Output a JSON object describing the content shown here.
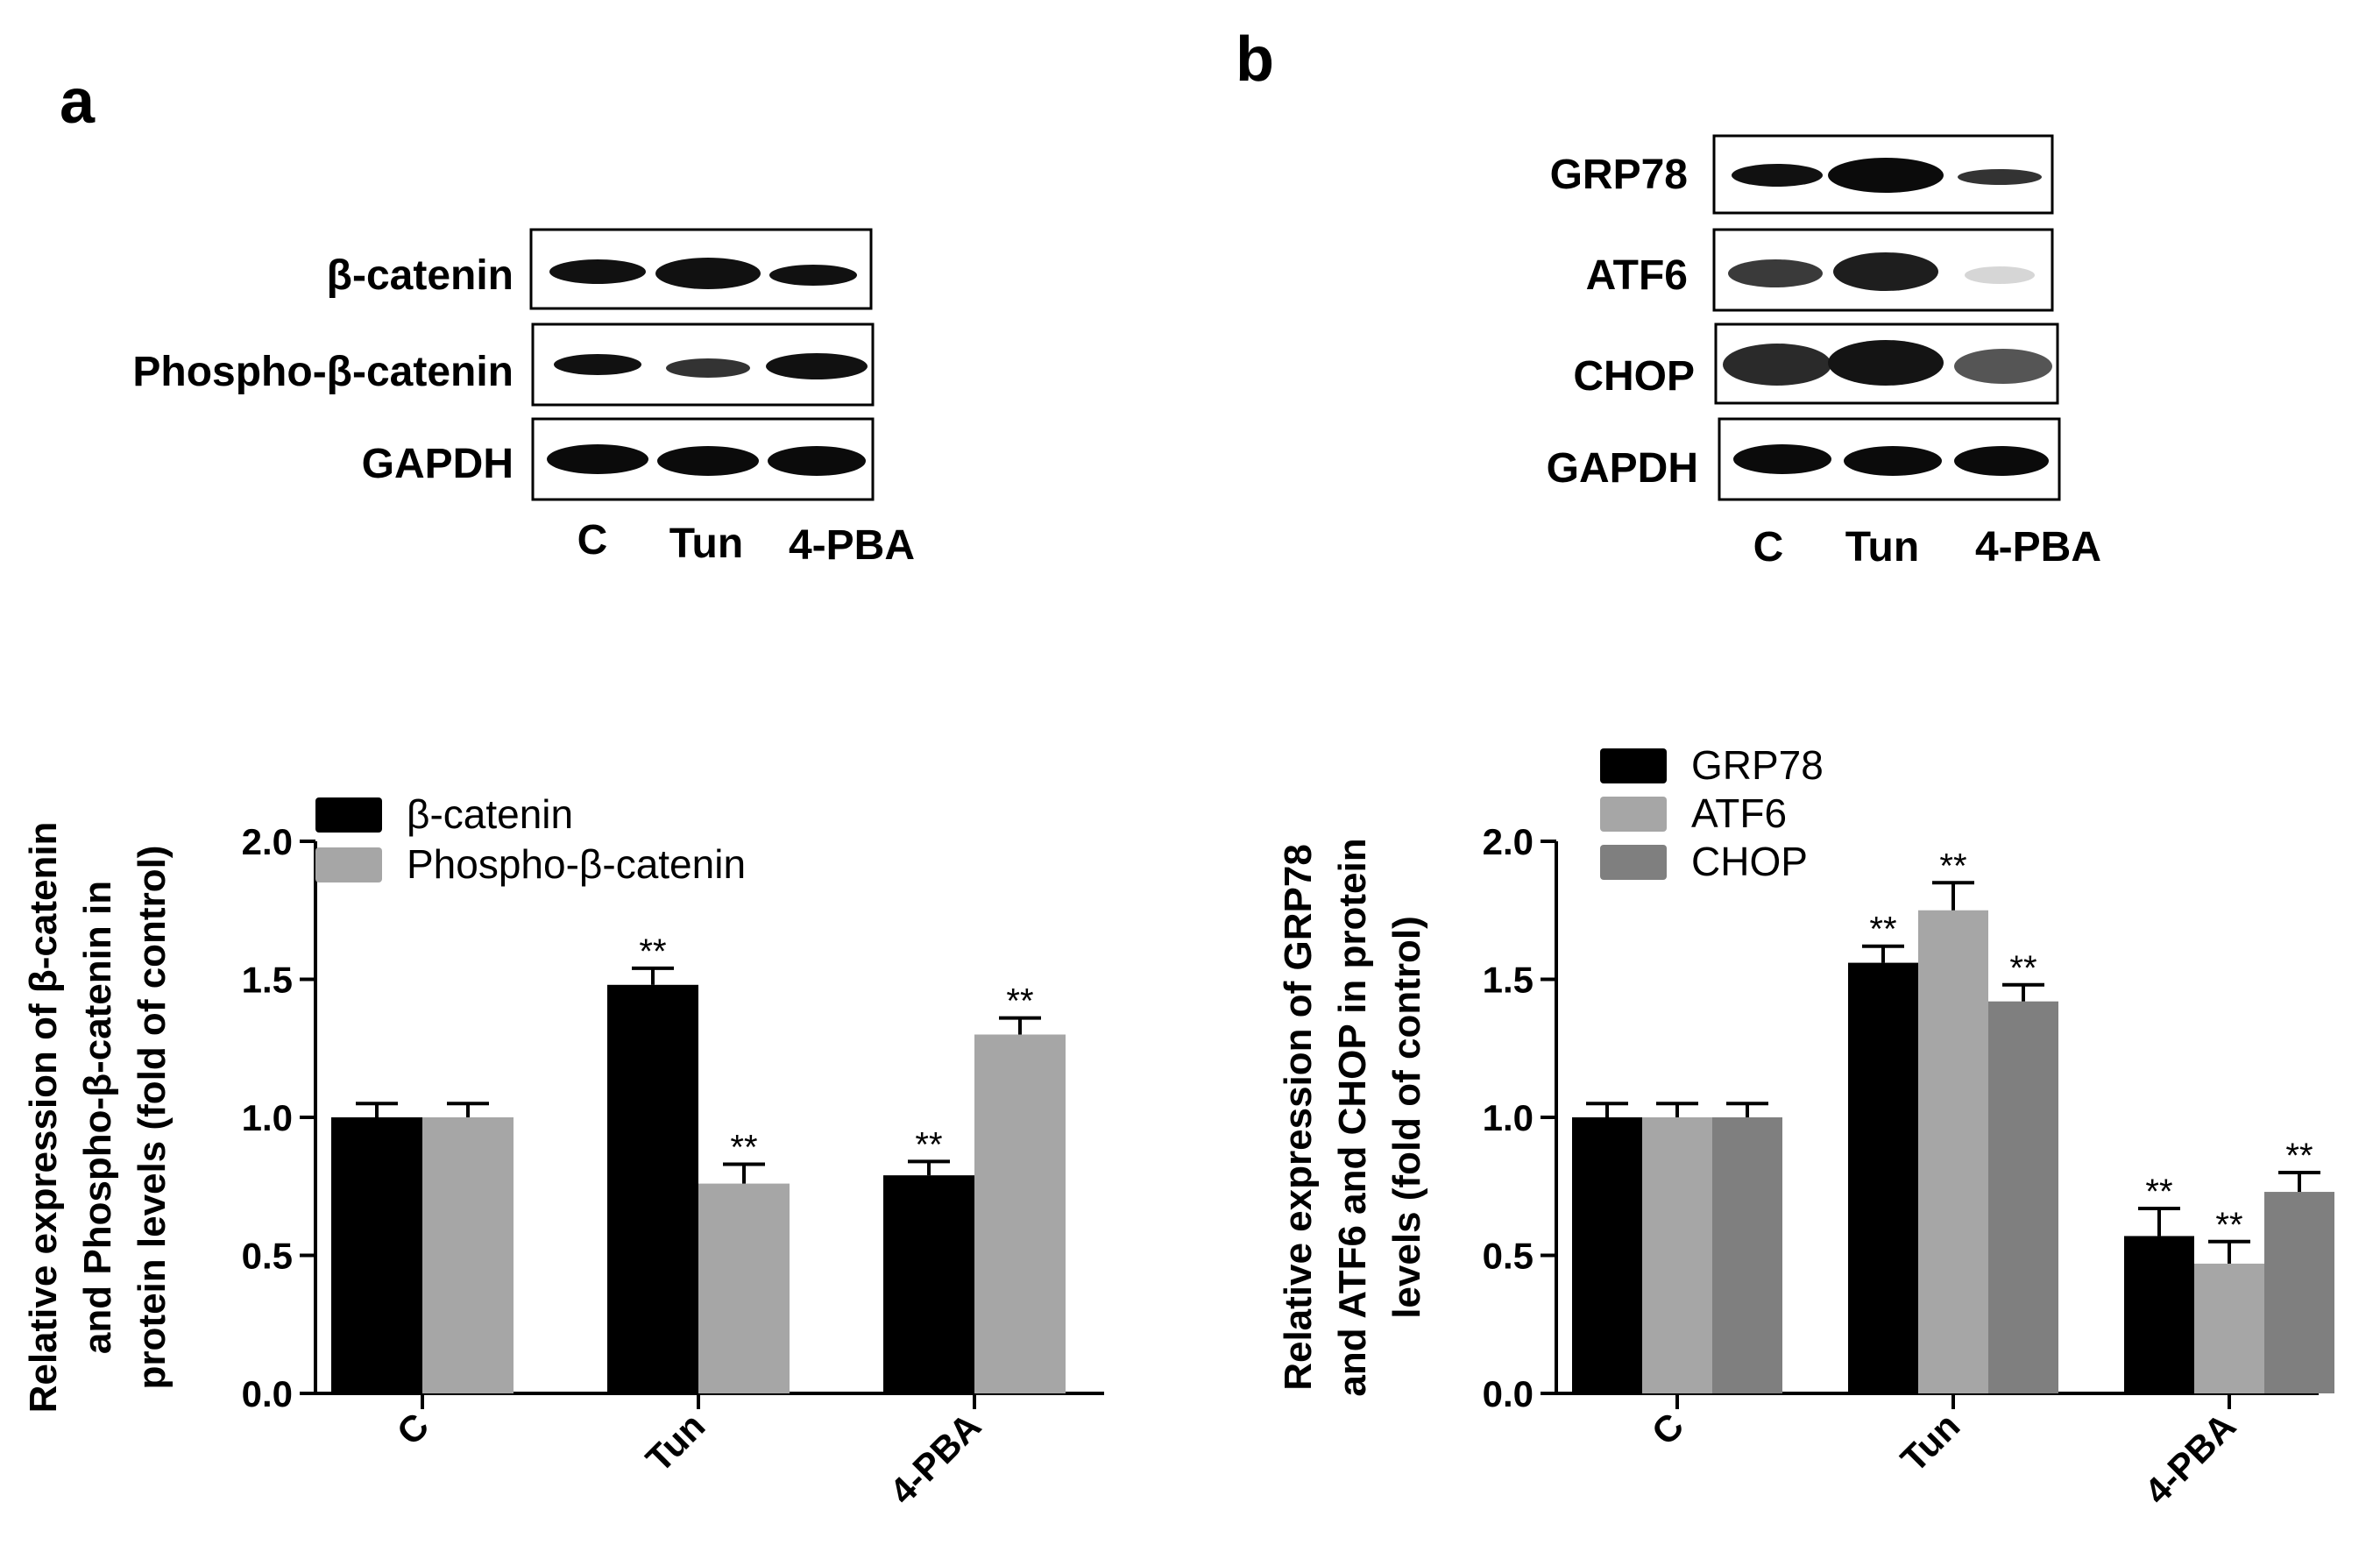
{
  "colors": {
    "black": "#000000",
    "light_gray": "#a6a6a6",
    "dark_gray": "#7f7f7f",
    "band": "#111111"
  },
  "panel_a": {
    "letter": "a",
    "blot": {
      "rows": [
        "β-catenin",
        "Phospho-β-catenin",
        "GAPDH"
      ],
      "lanes": [
        "C",
        "Tun",
        "4-PBA"
      ]
    }
  },
  "panel_b": {
    "letter": "b",
    "blot": {
      "rows": [
        "GRP78",
        "ATF6",
        "CHOP",
        "GAPDH"
      ],
      "lanes": [
        "C",
        "Tun",
        "4-PBA"
      ]
    }
  },
  "chart_data": [
    {
      "type": "bar",
      "title": "",
      "xlabel": "",
      "ylabel": "Relative expression of β-catenin|and Phospho-β-catenin in|protein levels (fold of control)",
      "categories": [
        "C",
        "Tun",
        "4-PBA"
      ],
      "ylim": [
        0,
        2.0
      ],
      "yticks": [
        "0.0",
        "0.5",
        "1.0",
        "1.5",
        "2.0"
      ],
      "legend_position": "top-left",
      "series": [
        {
          "name": "β-catenin",
          "color": "#000000",
          "values": [
            1.0,
            1.48,
            0.79
          ],
          "errors": [
            0.05,
            0.06,
            0.05
          ],
          "labels": [
            "",
            "**",
            "**"
          ]
        },
        {
          "name": "Phospho-β-catenin",
          "color": "#a6a6a6",
          "values": [
            1.0,
            0.76,
            1.3
          ],
          "errors": [
            0.05,
            0.07,
            0.06
          ],
          "labels": [
            "",
            "**",
            "**"
          ]
        }
      ]
    },
    {
      "type": "bar",
      "title": "",
      "xlabel": "",
      "ylabel": "Relative expression of GRP78|and ATF6 and CHOP in protein|levels (fold of control)",
      "categories": [
        "C",
        "Tun",
        "4-PBA"
      ],
      "ylim": [
        0,
        2.0
      ],
      "yticks": [
        "0.0",
        "0.5",
        "1.0",
        "1.5",
        "2.0"
      ],
      "legend_position": "top-left",
      "series": [
        {
          "name": "GRP78",
          "color": "#000000",
          "values": [
            1.0,
            1.56,
            0.57
          ],
          "errors": [
            0.05,
            0.06,
            0.1
          ],
          "labels": [
            "",
            "**",
            "**"
          ]
        },
        {
          "name": "ATF6",
          "color": "#a6a6a6",
          "values": [
            1.0,
            1.75,
            0.47
          ],
          "errors": [
            0.05,
            0.1,
            0.08
          ],
          "labels": [
            "",
            "**",
            "**"
          ]
        },
        {
          "name": "CHOP",
          "color": "#7f7f7f",
          "values": [
            1.0,
            1.42,
            0.73
          ],
          "errors": [
            0.05,
            0.06,
            0.07
          ],
          "labels": [
            "",
            "**",
            "**"
          ]
        }
      ]
    }
  ]
}
